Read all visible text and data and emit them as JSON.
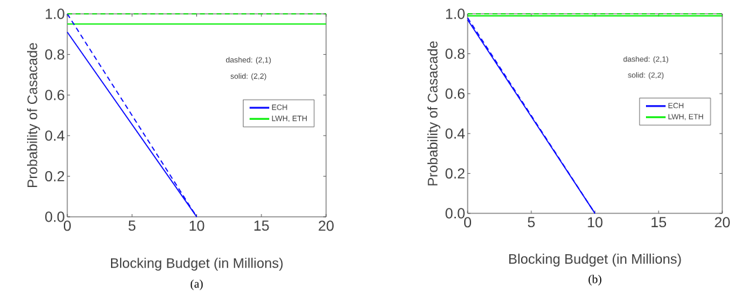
{
  "chart_data": [
    {
      "type": "line",
      "xlabel": "Blocking Budget (in Millions)",
      "ylabel": "Probability of Casacade",
      "xlim": [
        0,
        20
      ],
      "ylim": [
        0,
        1
      ],
      "xticks": [
        0,
        5,
        10,
        15,
        20
      ],
      "yticks": [
        {
          "value": 0,
          "label": "0.0"
        },
        {
          "value": 0.2,
          "label": "0.2"
        },
        {
          "value": 0.4,
          "label": "0.4"
        },
        {
          "value": 0.6,
          "label": "0.6"
        },
        {
          "value": 0.8,
          "label": "0.8"
        },
        {
          "value": 1,
          "label": "1.0"
        }
      ],
      "grid": false,
      "legend": "right",
      "annotations": [
        "dashed: (2,1)",
        "solid: (2,2)",
        "(a)"
      ],
      "series": [
        {
          "name": "ECH",
          "color": "#0000ff",
          "line_style": "solid",
          "x": [
            0,
            10
          ],
          "values": [
            0.91,
            0
          ]
        },
        {
          "name": "LWH, ETH",
          "color": "#00ee00",
          "line_style": "solid",
          "x": [
            0,
            20
          ],
          "values": [
            0.95,
            0.95
          ]
        },
        {
          "color": "#0000ff",
          "line_style": "dashed",
          "x": [
            0,
            10
          ],
          "values": [
            1.0,
            0
          ]
        },
        {
          "color": "#00ee00",
          "line_style": "dashed",
          "x": [
            0,
            20
          ],
          "values": [
            1.0,
            1.0
          ]
        }
      ]
    },
    {
      "type": "line",
      "xlabel": "Blocking Budget (in Millions)",
      "ylabel": "Probability of Casacade",
      "xlim": [
        0,
        20
      ],
      "ylim": [
        0,
        1
      ],
      "xticks": [
        0,
        5,
        10,
        15,
        20
      ],
      "yticks": [
        {
          "value": 0,
          "label": "0.0"
        },
        {
          "value": 0.2,
          "label": "0.2"
        },
        {
          "value": 0.4,
          "label": "0.4"
        },
        {
          "value": 0.6,
          "label": "0.6"
        },
        {
          "value": 0.8,
          "label": "0.8"
        },
        {
          "value": 1,
          "label": "1.0"
        }
      ],
      "grid": false,
      "legend": "right",
      "annotations": [
        "dashed: (2,1)",
        "solid: (2,2)",
        "(b)"
      ],
      "series": [
        {
          "name": "ECH",
          "color": "#0000ff",
          "line_style": "solid",
          "x": [
            0,
            10
          ],
          "values": [
            0.97,
            0
          ]
        },
        {
          "name": "LWH, ETH",
          "color": "#00ee00",
          "line_style": "solid",
          "x": [
            0,
            20
          ],
          "values": [
            0.99,
            0.99
          ]
        },
        {
          "color": "#0000ff",
          "line_style": "dashed",
          "x": [
            0,
            10
          ],
          "values": [
            0.98,
            0
          ]
        },
        {
          "color": "#00ee00",
          "line_style": "dashed",
          "x": [
            0,
            20
          ],
          "values": [
            1.0,
            1.0
          ]
        }
      ]
    }
  ]
}
